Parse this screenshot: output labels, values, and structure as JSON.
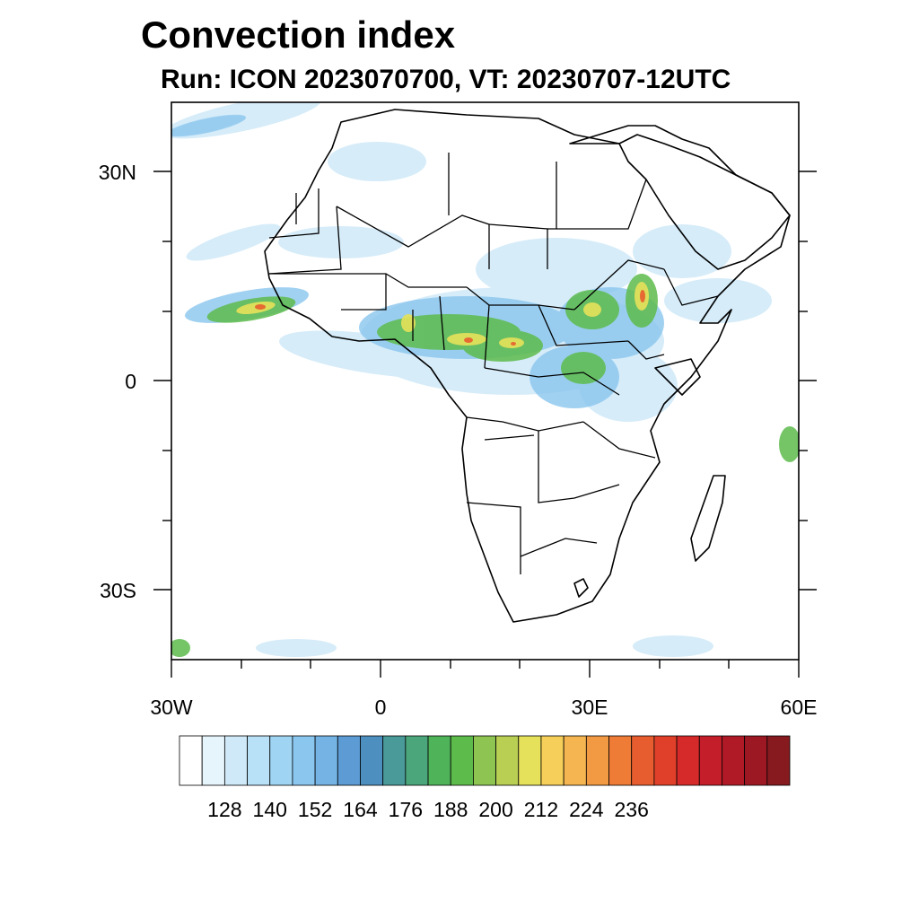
{
  "title": "Convection index",
  "subtitle": "Run: ICON 2023070700,  VT: 20230707-12UTC",
  "map": {
    "lon_range": [
      -30,
      60
    ],
    "lat_range": [
      -40,
      40
    ],
    "y_ticks": [
      "30N",
      "0",
      "30S"
    ],
    "x_ticks": [
      "30W",
      "0",
      "30E",
      "60E"
    ],
    "field": "convection index",
    "region": "Africa"
  },
  "colorbar": {
    "labels": [
      "128",
      "140",
      "152",
      "164",
      "176",
      "188",
      "200",
      "212",
      "224",
      "236"
    ],
    "colors": [
      "#ffffff",
      "#e6f4fb",
      "#cfe9f8",
      "#b8e0f6",
      "#9fd4f3",
      "#8ac6ee",
      "#74b3e4",
      "#5c9bd4",
      "#4d8fbf",
      "#4a9a9a",
      "#4ca67c",
      "#4fb35a",
      "#5dbb4c",
      "#8ec452",
      "#b8cf54",
      "#e6e15a",
      "#f5cf5a",
      "#f5b651",
      "#f29a43",
      "#ee7c37",
      "#e85d2f",
      "#e0402a",
      "#d62a2a",
      "#c41e2a",
      "#b01a27",
      "#9c1823",
      "#861a1f"
    ]
  }
}
